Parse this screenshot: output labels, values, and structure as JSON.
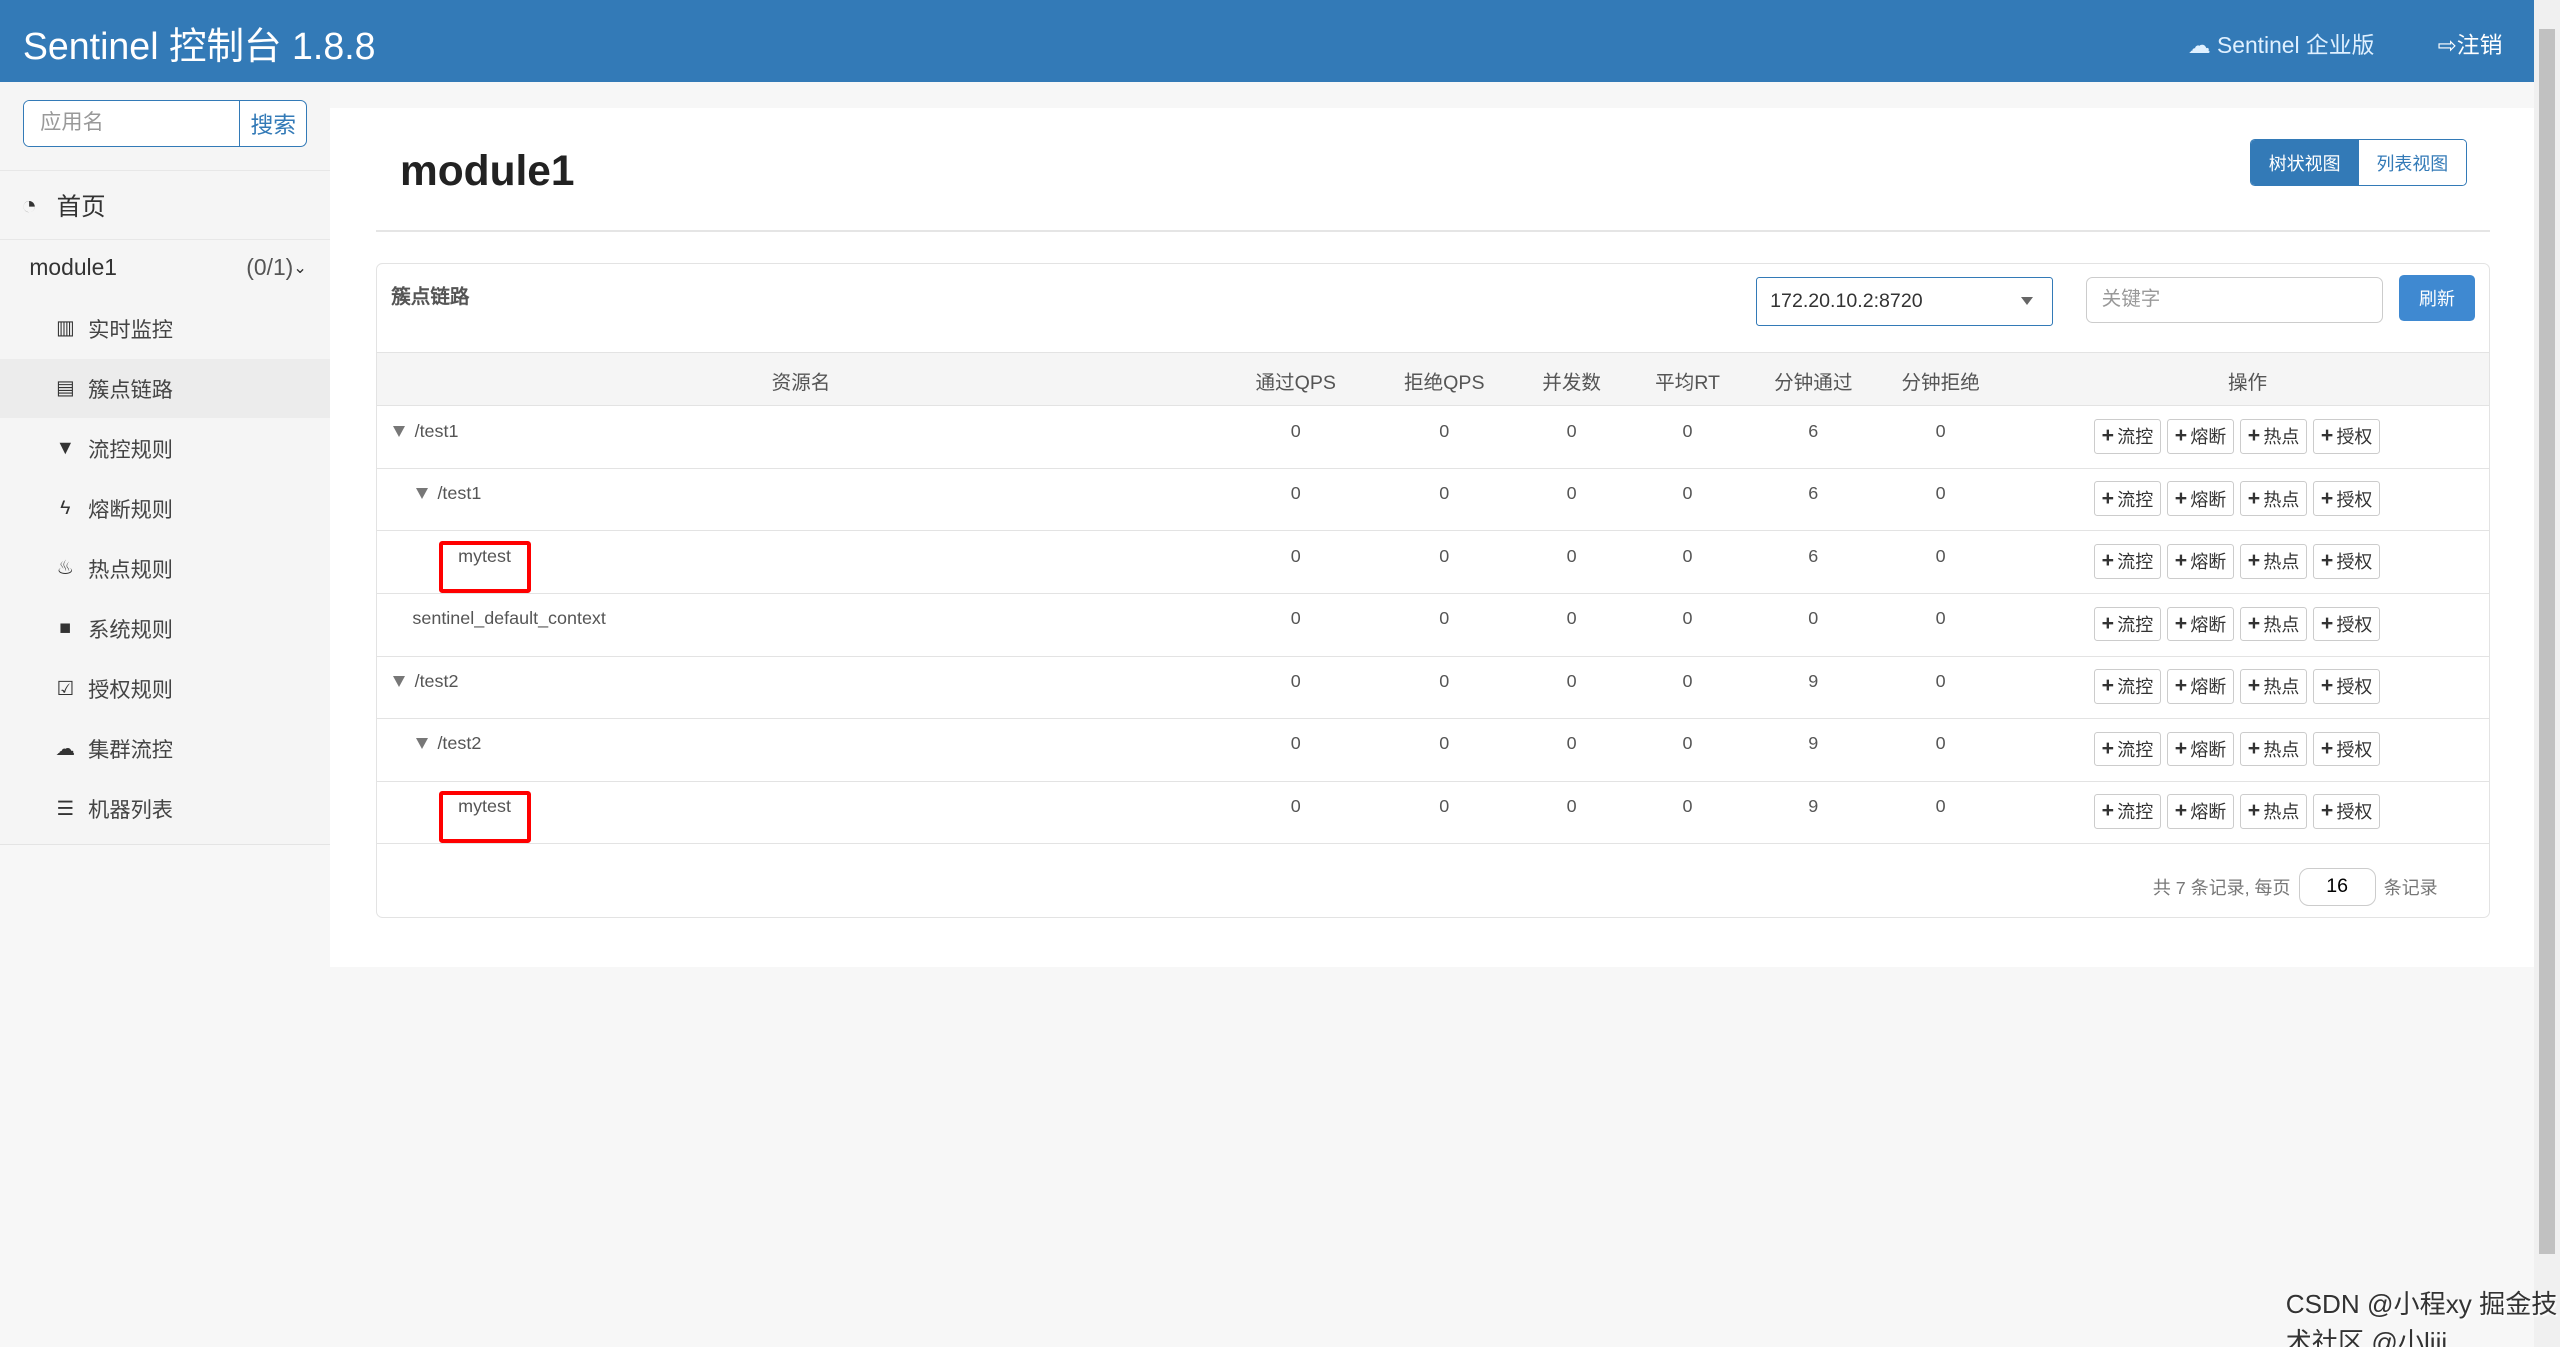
{
  "header": {
    "title": "Sentinel 控制台 1.8.8",
    "enterprise": "Sentinel 企业版",
    "logout": "注销",
    "color": "#337ab7"
  },
  "sidebar": {
    "search_placeholder": "应用名",
    "search_button": "搜索",
    "home": "首页",
    "app": {
      "name": "module1",
      "count": "(0/1)"
    },
    "items": [
      {
        "label": "实时监控",
        "icon": "bar-chart-icon"
      },
      {
        "label": "簇点链路",
        "icon": "list-icon",
        "active": true
      },
      {
        "label": "流控规则",
        "icon": "filter-icon"
      },
      {
        "label": "熔断规则",
        "icon": "flash-icon"
      },
      {
        "label": "热点规则",
        "icon": "fire-icon"
      },
      {
        "label": "系统规则",
        "icon": "lock-icon"
      },
      {
        "label": "授权规则",
        "icon": "check-icon"
      },
      {
        "label": "集群流控",
        "icon": "cloud-icon"
      },
      {
        "label": "机器列表",
        "icon": "th-list-icon"
      }
    ]
  },
  "main": {
    "title": "module1",
    "views": {
      "tree": "树状视图",
      "list": "列表视图"
    },
    "card_title": "簇点链路",
    "machine": "172.20.10.2:8720",
    "keyword_placeholder": "关键字",
    "refresh": "刷新",
    "columns": [
      "资源名",
      "通过QPS",
      "拒绝QPS",
      "并发数",
      "平均RT",
      "分钟通过",
      "分钟拒绝",
      "操作"
    ],
    "ops": [
      "流控",
      "熔断",
      "热点",
      "授权"
    ],
    "rows": [
      {
        "name": "/test1",
        "level": 0,
        "expand": true,
        "highlight": false,
        "vals": [
          "0",
          "0",
          "0",
          "0",
          "6",
          "0"
        ]
      },
      {
        "name": "/test1",
        "level": 1,
        "expand": true,
        "highlight": false,
        "vals": [
          "0",
          "0",
          "0",
          "0",
          "6",
          "0"
        ]
      },
      {
        "name": "mytest",
        "level": 2,
        "expand": false,
        "highlight": true,
        "vals": [
          "0",
          "0",
          "0",
          "0",
          "6",
          "0"
        ]
      },
      {
        "name": "sentinel_default_context",
        "level": 0,
        "expand": false,
        "highlight": false,
        "vals": [
          "0",
          "0",
          "0",
          "0",
          "0",
          "0"
        ]
      },
      {
        "name": "/test2",
        "level": 0,
        "expand": true,
        "highlight": false,
        "vals": [
          "0",
          "0",
          "0",
          "0",
          "9",
          "0"
        ]
      },
      {
        "name": "/test2",
        "level": 1,
        "expand": true,
        "highlight": false,
        "vals": [
          "0",
          "0",
          "0",
          "0",
          "9",
          "0"
        ]
      },
      {
        "name": "mytest",
        "level": 2,
        "expand": false,
        "highlight": true,
        "vals": [
          "0",
          "0",
          "0",
          "0",
          "9",
          "0"
        ]
      }
    ],
    "pager": {
      "prefix": "共 7 条记录, 每页",
      "page_size": "16",
      "suffix": "条记录"
    }
  },
  "watermark": "CSDN @小程xy 掘金技术社区 @小liji"
}
